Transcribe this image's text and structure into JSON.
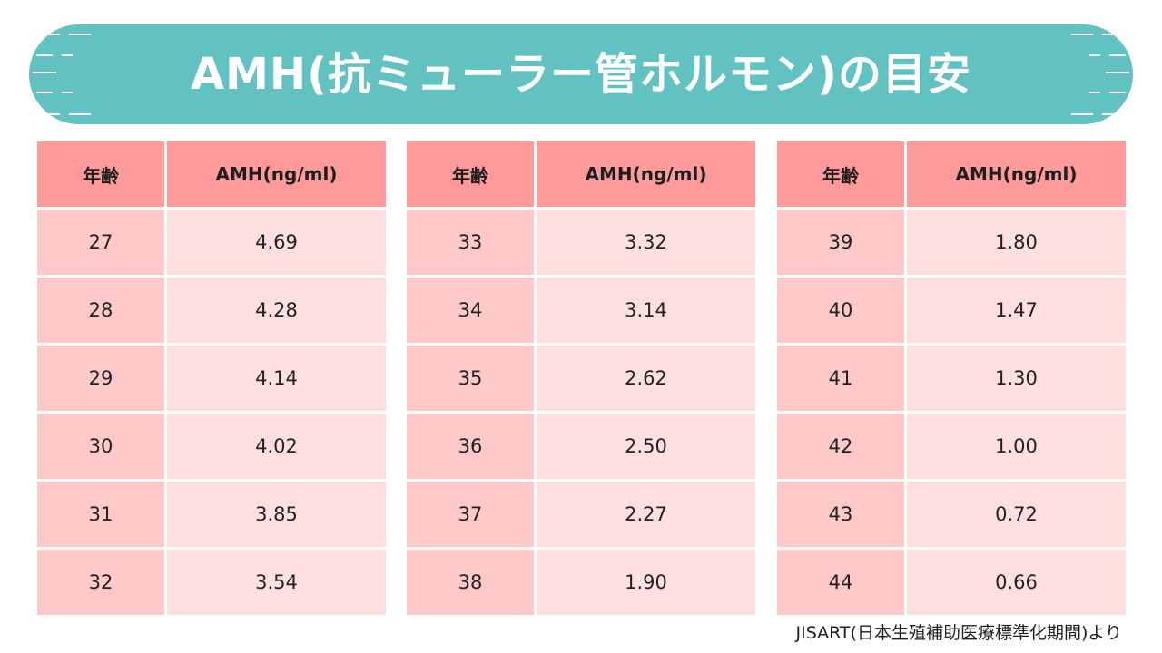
{
  "title": "AMH(抗ミューラー管ホルモン)の目安",
  "colors": {
    "banner": "#62c1c1",
    "header": "#ff9a9a",
    "age_cell": "#ffc9ca",
    "value_cell": "#ffdfe0"
  },
  "tables": [
    {
      "headers": {
        "age": "年齢",
        "amh": "AMH(ng/ml)"
      },
      "rows": [
        {
          "age": "27",
          "amh": "4.69"
        },
        {
          "age": "28",
          "amh": "4.28"
        },
        {
          "age": "29",
          "amh": "4.14"
        },
        {
          "age": "30",
          "amh": "4.02"
        },
        {
          "age": "31",
          "amh": "3.85"
        },
        {
          "age": "32",
          "amh": "3.54"
        }
      ]
    },
    {
      "headers": {
        "age": "年齢",
        "amh": "AMH(ng/ml)"
      },
      "rows": [
        {
          "age": "33",
          "amh": "3.32"
        },
        {
          "age": "34",
          "amh": "3.14"
        },
        {
          "age": "35",
          "amh": "2.62"
        },
        {
          "age": "36",
          "amh": "2.50"
        },
        {
          "age": "37",
          "amh": "2.27"
        },
        {
          "age": "38",
          "amh": "1.90"
        }
      ]
    },
    {
      "headers": {
        "age": "年齢",
        "amh": "AMH(ng/ml)"
      },
      "rows": [
        {
          "age": "39",
          "amh": "1.80"
        },
        {
          "age": "40",
          "amh": "1.47"
        },
        {
          "age": "41",
          "amh": "1.30"
        },
        {
          "age": "42",
          "amh": "1.00"
        },
        {
          "age": "43",
          "amh": "0.72"
        },
        {
          "age": "44",
          "amh": "0.66"
        }
      ]
    }
  ],
  "source": "JISART(日本生殖補助医療標準化期間)より"
}
